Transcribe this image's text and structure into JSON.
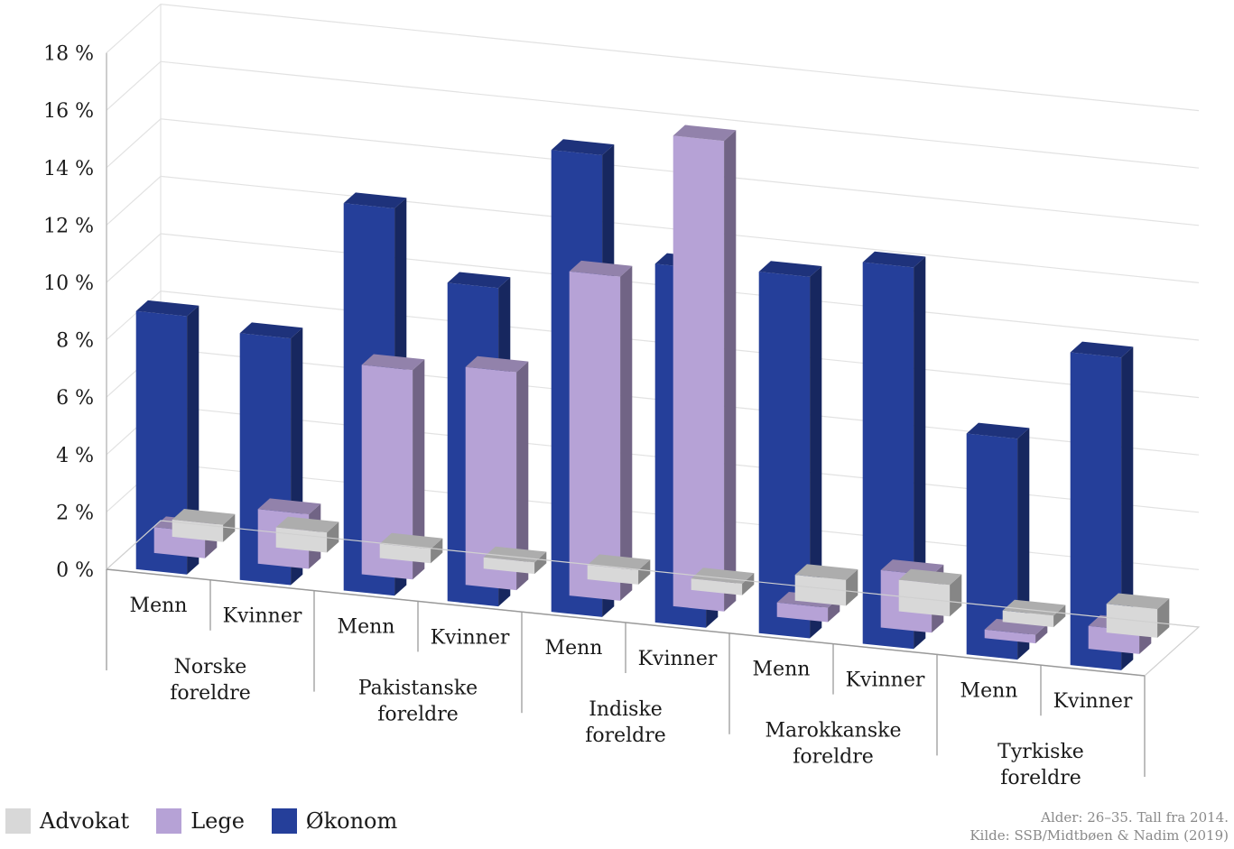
{
  "chart_data": {
    "type": "bar",
    "subtype": "3d-clustered-column",
    "y_ticks": [
      "0 %",
      "2 %",
      "4 %",
      "6 %",
      "8 %",
      "10 %",
      "12 %",
      "14 %",
      "16 %",
      "18 %"
    ],
    "ylim": [
      0,
      18
    ],
    "y_unit": "%",
    "grid": true,
    "groups": [
      {
        "label_line1": "Norske",
        "label_line2": "foreldre"
      },
      {
        "label_line1": "Pakistanske",
        "label_line2": "foreldre"
      },
      {
        "label_line1": "Indiske",
        "label_line2": "foreldre"
      },
      {
        "label_line1": "Marokkanske",
        "label_line2": "foreldre"
      },
      {
        "label_line1": "Tyrkiske",
        "label_line2": "foreldre"
      }
    ],
    "categories": [
      "Menn",
      "Kvinner",
      "Menn",
      "Kvinner",
      "Menn",
      "Kvinner",
      "Menn",
      "Kvinner",
      "Menn",
      "Kvinner"
    ],
    "series": [
      {
        "name": "Advokat",
        "color": "#d8d8d8",
        "values": [
          0.6,
          0.7,
          0.5,
          0.4,
          0.5,
          0.4,
          0.9,
          1.1,
          0.4,
          1.0
        ]
      },
      {
        "name": "Lege",
        "color": "#b6a2d6",
        "values": [
          0.9,
          1.9,
          7.3,
          7.6,
          11.3,
          16.4,
          0.5,
          2.0,
          0.3,
          0.8
        ]
      },
      {
        "name": "Økonom",
        "color": "#253f9a",
        "values": [
          9.0,
          8.6,
          13.5,
          11.1,
          16.1,
          12.5,
          12.6,
          13.3,
          7.7,
          10.9
        ]
      }
    ],
    "legend_position": "bottom-left"
  },
  "legend": {
    "advokat": "Advokat",
    "lege": "Lege",
    "okonom": "Økonom"
  },
  "source": {
    "line1": "Alder: 26–35.  Tall fra 2014.",
    "line2": "Kilde: SSB/Midtbøen & Nadim (2019)"
  }
}
